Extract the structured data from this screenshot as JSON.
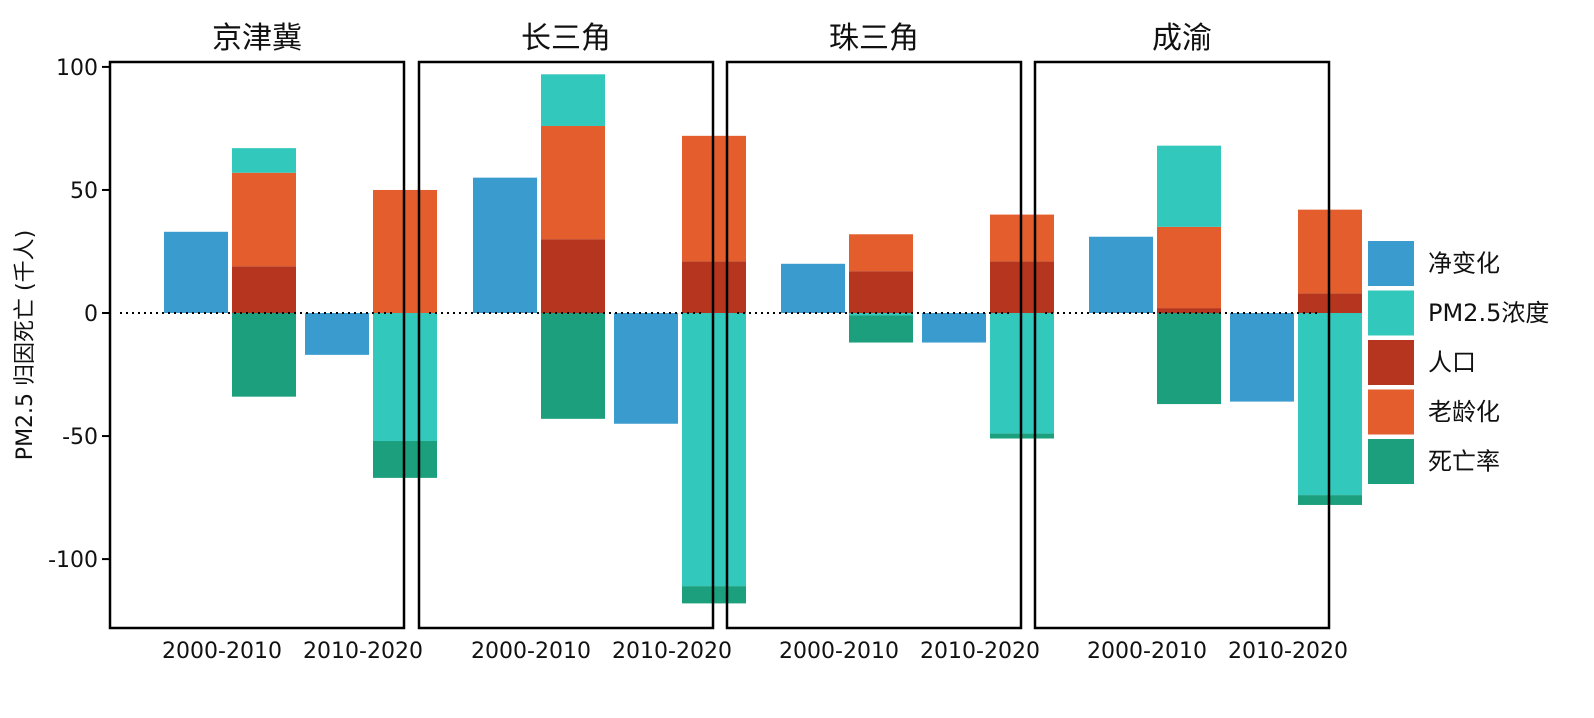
{
  "chart_data": {
    "type": "bar",
    "stacked": true,
    "ylabel": "PM2.5 归因死亡 (千人)",
    "ylim": [
      -128,
      102
    ],
    "yticks": [
      100,
      50,
      0,
      -50,
      -100
    ],
    "categories": [
      "2000-2010",
      "2010-2020"
    ],
    "zero_line": "dotted",
    "legend_position": "right",
    "panels": [
      {
        "title": "京津冀",
        "net": [
          33,
          -17
        ],
        "pm25": [
          10,
          -52
        ],
        "population": [
          19,
          0
        ],
        "aging": [
          38,
          50
        ],
        "mortality": [
          -34,
          -15
        ]
      },
      {
        "title": "长三角",
        "net": [
          55,
          -45
        ],
        "pm25": [
          21,
          -111
        ],
        "population": [
          30,
          21
        ],
        "aging": [
          46,
          51
        ],
        "mortality": [
          -43,
          -7
        ]
      },
      {
        "title": "珠三角",
        "net": [
          20,
          -12
        ],
        "pm25": [
          -1,
          -49
        ],
        "population": [
          17,
          21
        ],
        "aging": [
          15,
          19
        ],
        "mortality": [
          -11,
          -2
        ]
      },
      {
        "title": "成渝",
        "net": [
          31,
          -36
        ],
        "pm25": [
          33,
          -74
        ],
        "population": [
          2,
          8
        ],
        "aging": [
          33,
          34
        ],
        "mortality": [
          -37,
          -4
        ]
      }
    ],
    "series": [
      {
        "key": "net",
        "name": "净变化",
        "color": "#3a9bce"
      },
      {
        "key": "pm25",
        "name": "PM2.5浓度",
        "color": "#33c8bc"
      },
      {
        "key": "population",
        "name": "人口",
        "color": "#b5351f"
      },
      {
        "key": "aging",
        "name": "老龄化",
        "color": "#e35e2c"
      },
      {
        "key": "mortality",
        "name": "死亡率",
        "color": "#1c9f7d"
      }
    ]
  }
}
